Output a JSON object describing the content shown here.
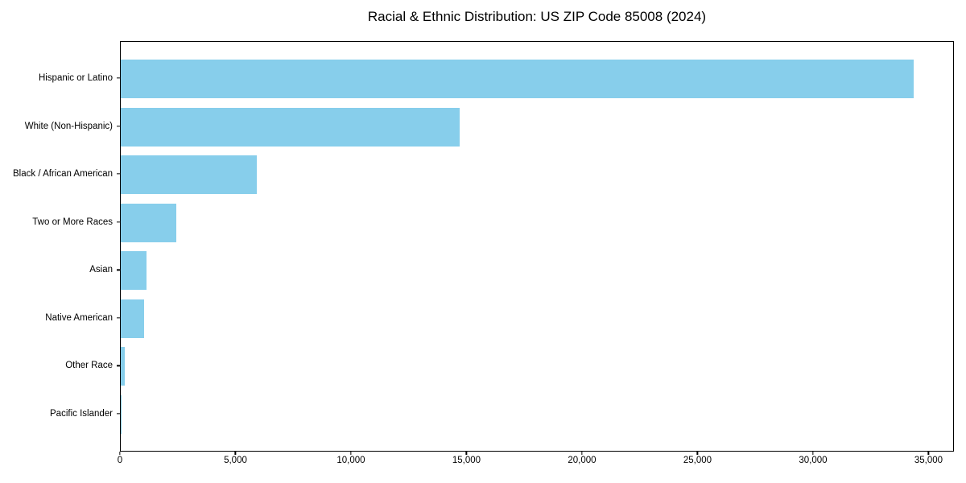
{
  "chart_data": {
    "type": "bar",
    "orientation": "horizontal",
    "title": "Racial & Ethnic Distribution: US ZIP Code 85008 (2024)",
    "categories": [
      "Hispanic or Latino",
      "White (Non-Hispanic)",
      "Black / African American",
      "Two or More Races",
      "Asian",
      "Native American",
      "Other Race",
      "Pacific Islander"
    ],
    "values": [
      34400,
      14700,
      5900,
      2400,
      1100,
      1000,
      170,
      20
    ],
    "xlabel": "",
    "ylabel": "",
    "xlim": [
      0,
      36100
    ],
    "x_ticks": [
      0,
      5000,
      10000,
      15000,
      20000,
      25000,
      30000,
      35000
    ],
    "x_tick_labels": [
      "0",
      "5,000",
      "10,000",
      "15,000",
      "20,000",
      "25,000",
      "30,000",
      "35,000"
    ],
    "bar_color": "#87CEEB",
    "grid": false,
    "legend": null,
    "axis_color": "#000000"
  }
}
